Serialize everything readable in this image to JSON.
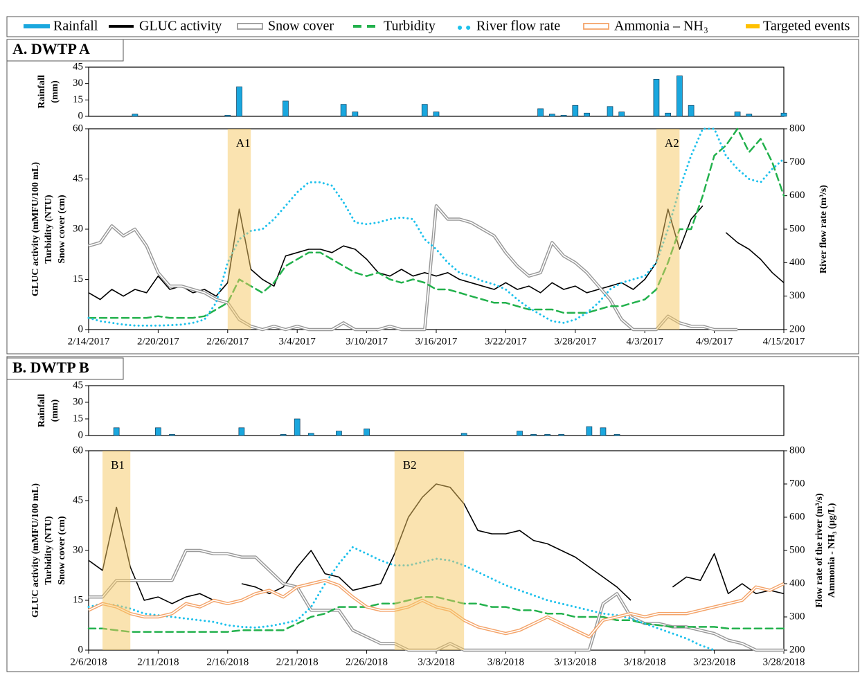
{
  "chart_data": [
    {
      "type": "bar",
      "title": "A. DWTP A",
      "ylabel": [
        "Rainfall",
        "(mm)"
      ],
      "xlim": [
        "2/14/2017",
        "4/15/2017"
      ],
      "ylim": [
        0,
        45
      ],
      "yticks": [
        0,
        15,
        30,
        45
      ],
      "x": [
        "2/18/2017",
        "2/26/2017",
        "2/27/2017",
        "3/3/2017",
        "3/8/2017",
        "3/9/2017",
        "3/15/2017",
        "3/16/2017",
        "3/25/2017",
        "3/26/2017",
        "3/27/2017",
        "3/28/2017",
        "3/29/2017",
        "3/31/2017",
        "4/1/2017",
        "4/4/2017",
        "4/5/2017",
        "4/6/2017",
        "4/7/2017",
        "4/11/2017",
        "4/12/2017",
        "4/15/2017"
      ],
      "series": [
        {
          "name": "Rainfall",
          "color": "#1aa7de",
          "values": [
            2,
            1,
            27,
            14,
            11,
            4,
            11,
            4,
            7,
            2,
            1,
            10,
            3,
            9,
            4,
            34,
            3,
            37,
            10,
            4,
            2,
            3
          ]
        }
      ]
    },
    {
      "type": "line",
      "ylabel": [
        "GLUC activity (mMFU/100 mL)",
        "Turbidity (NTU)",
        "Snow cover (cm)"
      ],
      "y2label": [
        "River flow rate (m³/s)"
      ],
      "xlim": [
        "2/14/2017",
        "4/15/2017"
      ],
      "xticks": [
        "2/14/2017",
        "2/20/2017",
        "2/26/2017",
        "3/4/2017",
        "3/10/2017",
        "3/16/2017",
        "3/22/2017",
        "3/28/2017",
        "4/3/2017",
        "4/9/2017",
        "4/15/2017"
      ],
      "ylim": [
        0,
        60
      ],
      "yticks": [
        0,
        15,
        30,
        45,
        60
      ],
      "y2lim": [
        200,
        800
      ],
      "y2ticks": [
        200,
        300,
        400,
        500,
        600,
        700,
        800
      ],
      "x": [
        "2/14/2017",
        "2/15/2017",
        "2/16/2017",
        "2/17/2017",
        "2/18/2017",
        "2/19/2017",
        "2/20/2017",
        "2/21/2017",
        "2/22/2017",
        "2/23/2017",
        "2/24/2017",
        "2/25/2017",
        "2/26/2017",
        "2/27/2017",
        "2/28/2017",
        "3/1/2017",
        "3/2/2017",
        "3/3/2017",
        "3/4/2017",
        "3/5/2017",
        "3/6/2017",
        "3/7/2017",
        "3/8/2017",
        "3/9/2017",
        "3/10/2017",
        "3/11/2017",
        "3/12/2017",
        "3/13/2017",
        "3/14/2017",
        "3/15/2017",
        "3/16/2017",
        "3/17/2017",
        "3/18/2017",
        "3/19/2017",
        "3/20/2017",
        "3/21/2017",
        "3/22/2017",
        "3/23/2017",
        "3/24/2017",
        "3/25/2017",
        "3/26/2017",
        "3/27/2017",
        "3/28/2017",
        "3/29/2017",
        "3/30/2017",
        "3/31/2017",
        "4/1/2017",
        "4/2/2017",
        "4/3/2017",
        "4/4/2017",
        "4/5/2017",
        "4/6/2017",
        "4/7/2017",
        "4/8/2017",
        "4/9/2017",
        "4/10/2017",
        "4/11/2017",
        "4/12/2017",
        "4/13/2017",
        "4/14/2017",
        "4/15/2017"
      ],
      "series": [
        {
          "name": "GLUC activity",
          "color": "#000000",
          "values": [
            11,
            9,
            12,
            10,
            12,
            11,
            16,
            12,
            13,
            11,
            12,
            10,
            14,
            36,
            18,
            15,
            13,
            22,
            23,
            24,
            24,
            23,
            25,
            24,
            21,
            17,
            16,
            18,
            16,
            17,
            16,
            17,
            15,
            14,
            13,
            12,
            14,
            12,
            13,
            11,
            14,
            12,
            13,
            11,
            12,
            13,
            14,
            12,
            15,
            20,
            36,
            24,
            33,
            37,
            null,
            29,
            26,
            24,
            21,
            17,
            14
          ]
        },
        {
          "name": "Snow cover",
          "color": "#999999",
          "outline": true,
          "values": [
            25,
            26,
            31,
            28,
            30,
            25,
            17,
            13,
            13,
            12,
            11,
            9,
            8,
            3,
            1,
            0,
            1,
            0,
            1,
            0,
            0,
            0,
            2,
            0,
            0,
            0,
            1,
            0,
            0,
            0,
            37,
            33,
            33,
            32,
            30,
            28,
            23,
            19,
            16,
            17,
            26,
            22,
            20,
            17,
            13,
            9,
            3,
            0,
            0,
            0,
            4,
            2,
            1,
            1,
            0,
            0,
            0,
            null,
            null,
            null,
            null
          ]
        },
        {
          "name": "Turbidity",
          "color": "#22b14c",
          "dash": "dashed",
          "values": [
            3.5,
            3.5,
            3.5,
            3.5,
            3.5,
            3.5,
            4,
            3.5,
            3.5,
            3.5,
            4,
            6,
            8,
            15,
            13,
            11,
            14,
            19,
            21,
            23,
            23,
            21,
            19,
            17,
            16,
            17,
            15,
            14,
            15,
            14,
            12,
            12,
            11,
            10,
            9,
            8,
            8,
            7,
            6,
            6,
            6,
            5,
            5,
            5,
            6,
            7,
            7,
            8,
            9,
            12,
            20,
            30,
            30,
            40,
            52,
            55,
            60,
            53,
            57,
            50,
            40
          ]
        },
        {
          "name": "River flow rate",
          "color": "#1ec1ec",
          "dash": "dotted",
          "axis": "y2",
          "values": [
            235,
            225,
            220,
            215,
            212,
            212,
            212,
            213,
            215,
            220,
            230,
            280,
            400,
            470,
            495,
            500,
            530,
            570,
            610,
            640,
            640,
            630,
            580,
            520,
            515,
            520,
            530,
            535,
            530,
            470,
            440,
            400,
            370,
            360,
            345,
            335,
            320,
            290,
            265,
            245,
            225,
            220,
            230,
            250,
            280,
            320,
            340,
            350,
            360,
            400,
            500,
            620,
            720,
            800,
            800,
            720,
            680,
            650,
            640,
            680,
            710
          ]
        }
      ],
      "events": {
        "name": "Targeted events",
        "color": "#f5c862",
        "spans": [
          {
            "label": "A1",
            "x": [
              "2/26/2017",
              "2/28/2017"
            ]
          },
          {
            "label": "A2",
            "x": [
              "4/4/2017",
              "4/6/2017"
            ]
          }
        ]
      }
    },
    {
      "type": "bar",
      "title": "B. DWTP B",
      "ylabel": [
        "Rainfall",
        "(mm)"
      ],
      "xlim": [
        "2/6/2018",
        "3/28/2018"
      ],
      "ylim": [
        0,
        45
      ],
      "yticks": [
        0,
        15,
        30,
        45
      ],
      "x": [
        "2/8/2018",
        "2/11/2018",
        "2/12/2018",
        "2/17/2018",
        "2/20/2018",
        "2/21/2018",
        "2/22/2018",
        "2/24/2018",
        "2/26/2018",
        "3/5/2018",
        "3/9/2018",
        "3/10/2018",
        "3/11/2018",
        "3/12/2018",
        "3/14/2018",
        "3/15/2018",
        "3/16/2018"
      ],
      "series": [
        {
          "name": "Rainfall",
          "color": "#1aa7de",
          "values": [
            7,
            7,
            1,
            7,
            1,
            15,
            2,
            4,
            6,
            2,
            4,
            1,
            1,
            1,
            8,
            7,
            1
          ]
        }
      ]
    },
    {
      "type": "line",
      "ylabel": [
        "GLUC activity (mMFU/100 mL)",
        "Turbidity (NTU)",
        "Snow cover (cm)"
      ],
      "y2label": [
        "Flow rate of the river (m³/s)",
        "Ammonia - NH₃ (µg/L)"
      ],
      "xlim": [
        "2/6/2018",
        "3/28/2018"
      ],
      "xticks": [
        "2/6/2018",
        "2/11/2018",
        "2/16/2018",
        "2/21/2018",
        "2/26/2018",
        "3/3/2018",
        "3/8/2018",
        "3/13/2018",
        "3/18/2018",
        "3/23/2018",
        "3/28/2018"
      ],
      "ylim": [
        0,
        60
      ],
      "yticks": [
        0,
        15,
        30,
        45,
        60
      ],
      "y2lim": [
        200,
        800
      ],
      "y2ticks": [
        200,
        300,
        400,
        500,
        600,
        700,
        800
      ],
      "x": [
        "2/6/2018",
        "2/7/2018",
        "2/8/2018",
        "2/9/2018",
        "2/10/2018",
        "2/11/2018",
        "2/12/2018",
        "2/13/2018",
        "2/14/2018",
        "2/15/2018",
        "2/16/2018",
        "2/17/2018",
        "2/18/2018",
        "2/19/2018",
        "2/20/2018",
        "2/21/2018",
        "2/22/2018",
        "2/23/2018",
        "2/24/2018",
        "2/25/2018",
        "2/26/2018",
        "2/27/2018",
        "2/28/2018",
        "3/1/2018",
        "3/2/2018",
        "3/3/2018",
        "3/4/2018",
        "3/5/2018",
        "3/6/2018",
        "3/7/2018",
        "3/8/2018",
        "3/9/2018",
        "3/10/2018",
        "3/11/2018",
        "3/12/2018",
        "3/13/2018",
        "3/14/2018",
        "3/15/2018",
        "3/16/2018",
        "3/17/2018",
        "3/18/2018",
        "3/19/2018",
        "3/20/2018",
        "3/21/2018",
        "3/22/2018",
        "3/23/2018",
        "3/24/2018",
        "3/25/2018",
        "3/26/2018",
        "3/27/2018",
        "3/28/2018"
      ],
      "series": [
        {
          "name": "GLUC activity",
          "color": "#000000",
          "values": [
            27,
            24,
            43,
            25,
            15,
            16,
            14,
            16,
            17,
            15,
            null,
            20,
            19,
            17,
            19,
            25,
            30,
            23,
            22,
            18,
            19,
            20,
            29,
            40,
            46,
            50,
            49,
            44,
            36,
            35,
            35,
            36,
            33,
            32,
            30,
            28,
            25,
            22,
            19,
            15,
            null,
            null,
            19,
            22,
            21,
            29,
            17,
            20,
            17,
            18,
            17
          ]
        },
        {
          "name": "Snow cover",
          "color": "#999999",
          "outline": true,
          "values": [
            16,
            16,
            21,
            21,
            21,
            21,
            21,
            30,
            30,
            29,
            29,
            28,
            28,
            24,
            20,
            19,
            12,
            12,
            12,
            6,
            4,
            2,
            2,
            0,
            0,
            0,
            2,
            0,
            0,
            0,
            0,
            0,
            0,
            0,
            0,
            0,
            0,
            14,
            17,
            10,
            8,
            8,
            7,
            7,
            6,
            5,
            3,
            2,
            0,
            0,
            0
          ]
        },
        {
          "name": "Turbidity",
          "color": "#22b14c",
          "dash": "dashed",
          "values": [
            6.5,
            6.5,
            6,
            5.5,
            5.5,
            5.5,
            5.5,
            5.5,
            5.5,
            5.5,
            5.5,
            6,
            6,
            6,
            6,
            8,
            10,
            11,
            13,
            13,
            13,
            14,
            14,
            15,
            16,
            16,
            15,
            14,
            14,
            13,
            13,
            12,
            12,
            11,
            11,
            10,
            10,
            10,
            9,
            9,
            8,
            7.5,
            7,
            7,
            7,
            7,
            6.5,
            6.5,
            6.5,
            6.5,
            6.5
          ]
        },
        {
          "name": "River flow rate",
          "color": "#1ec1ec",
          "dash": "dotted",
          "axis": "y2",
          "values": [
            330,
            340,
            335,
            325,
            310,
            305,
            300,
            295,
            290,
            285,
            275,
            270,
            268,
            272,
            280,
            290,
            330,
            400,
            460,
            510,
            490,
            470,
            455,
            455,
            465,
            475,
            470,
            455,
            435,
            415,
            395,
            380,
            365,
            350,
            340,
            330,
            320,
            310,
            305,
            295,
            280,
            265,
            250,
            235,
            215,
            200,
            null,
            null,
            null,
            null,
            null
          ]
        },
        {
          "name": "Ammonia – NH₃",
          "color": "#f4a46a",
          "outline": true,
          "axis": "y2",
          "values": [
            320,
            340,
            330,
            310,
            300,
            300,
            310,
            340,
            330,
            350,
            340,
            350,
            370,
            380,
            360,
            390,
            400,
            410,
            395,
            360,
            330,
            320,
            320,
            330,
            350,
            330,
            320,
            290,
            270,
            260,
            250,
            260,
            280,
            300,
            280,
            260,
            240,
            290,
            300,
            310,
            300,
            310,
            310,
            310,
            320,
            330,
            340,
            350,
            390,
            380,
            400
          ]
        }
      ],
      "events": {
        "name": "Targeted events",
        "color": "#f5c862",
        "spans": [
          {
            "label": "B1",
            "x": [
              "2/7/2018",
              "2/9/2018"
            ]
          },
          {
            "label": "B2",
            "x": [
              "2/28/2018",
              "3/5/2018"
            ]
          }
        ]
      }
    }
  ]
}
